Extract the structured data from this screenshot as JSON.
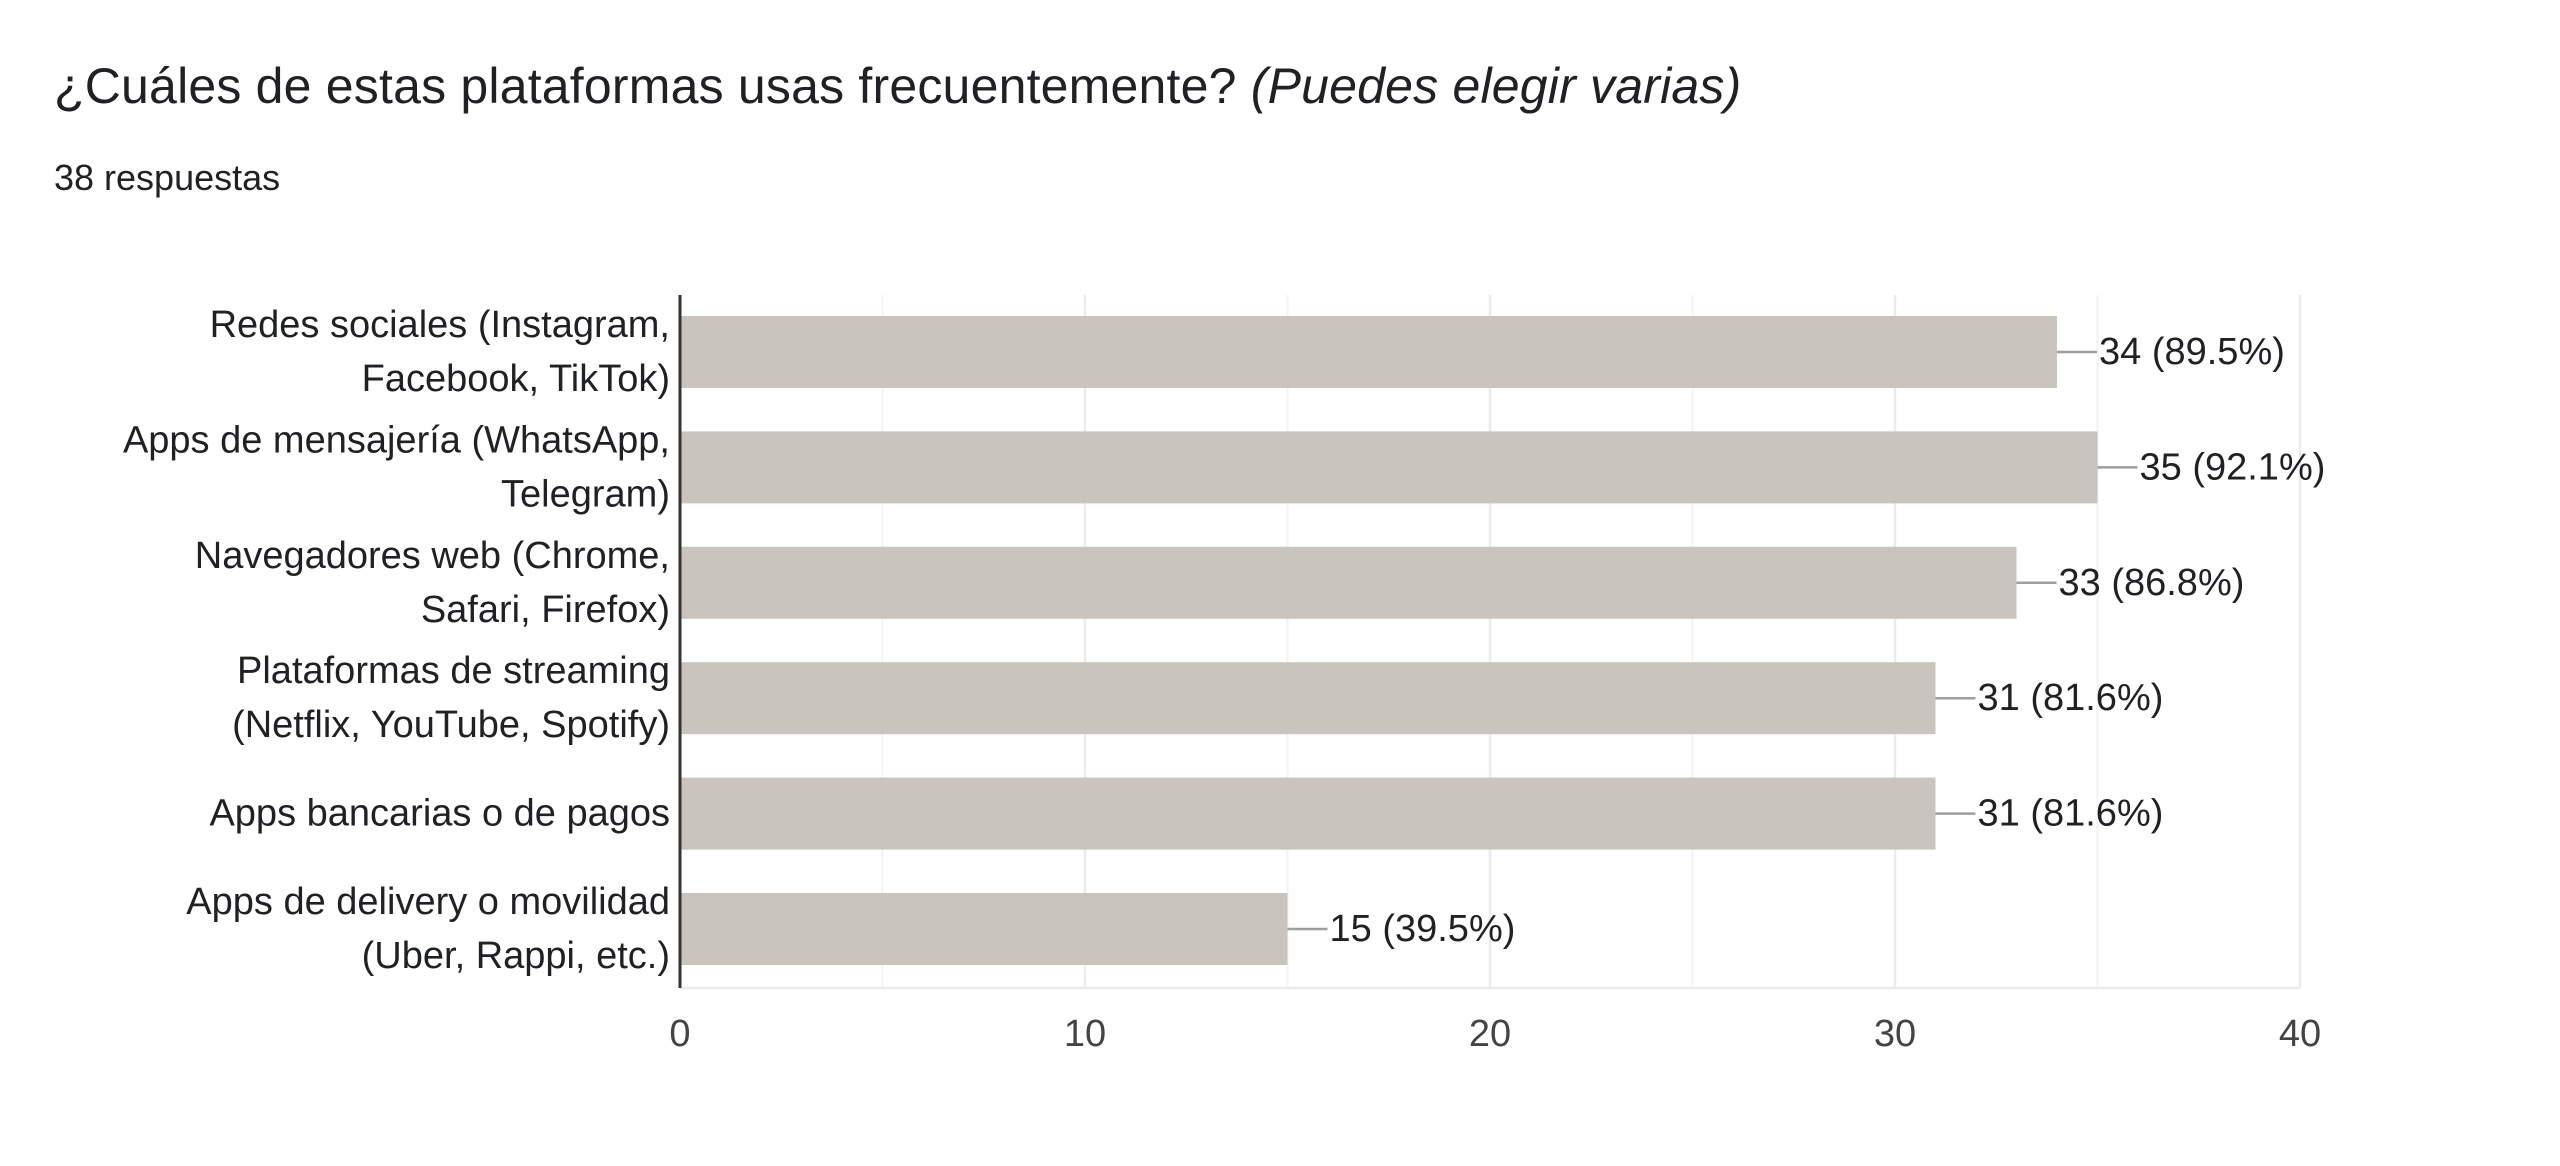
{
  "question": {
    "text": "¿Cuáles de estas plataformas usas frecuentemente?",
    "hint": "(Puedes elegir varias)"
  },
  "responses_label": "38 respuestas",
  "chart_data": {
    "type": "bar",
    "orientation": "horizontal",
    "title": "¿Cuáles de estas plataformas usas frecuentemente? (Puedes elegir varias)",
    "total_responses": 38,
    "categories": [
      [
        "Redes sociales (Instagram,",
        "Facebook, TikTok)"
      ],
      [
        "Apps de mensajería (WhatsApp,",
        "Telegram)"
      ],
      [
        "Navegadores web (Chrome,",
        "Safari, Firefox)"
      ],
      [
        "Plataformas de streaming",
        "(Netflix, YouTube, Spotify)"
      ],
      [
        "Apps bancarias o de pagos"
      ],
      [
        "Apps de delivery o movilidad",
        "(Uber, Rappi, etc.)"
      ]
    ],
    "values": [
      34,
      35,
      33,
      31,
      31,
      15
    ],
    "data_labels": [
      "34 (89.5%)",
      "35 (92.1%)",
      "33 (86.8%)",
      "31 (81.6%)",
      "31 (81.6%)",
      "15 (39.5%)"
    ],
    "xlim": [
      0,
      40
    ],
    "xticks": [
      0,
      10,
      20,
      30,
      40
    ],
    "minor_gridlines": [
      5,
      15,
      25,
      35
    ],
    "grid": true,
    "legend": "none",
    "colors": {
      "bar": "#c9c5be",
      "leader": "#9e9e9e",
      "grid": "#ebebeb",
      "axis": "#333333",
      "text": "#202124"
    }
  }
}
